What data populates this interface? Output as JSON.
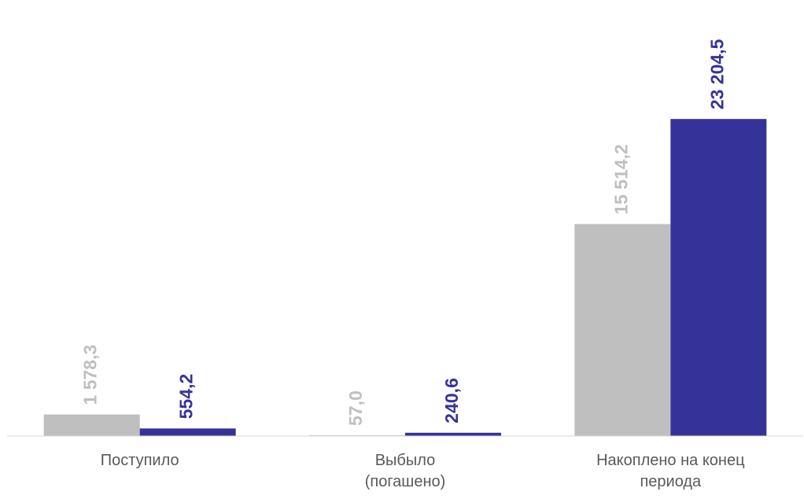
{
  "chart_data": {
    "type": "bar",
    "categories": [
      "Поступило",
      "Выбыло (погашено)",
      "Накоплено на конец периода"
    ],
    "series": [
      {
        "color": "#bfbfbf",
        "values": [
          1578.3,
          57.0,
          15514.2
        ],
        "value_labels": [
          "1 578,3",
          "57,0",
          "15 514,2"
        ]
      },
      {
        "color": "#35339a",
        "values": [
          554.2,
          240.6,
          23204.5
        ],
        "value_labels": [
          "554,2",
          "240,6",
          "23 204,5"
        ]
      }
    ],
    "ylim": [
      0,
      25000
    ]
  }
}
